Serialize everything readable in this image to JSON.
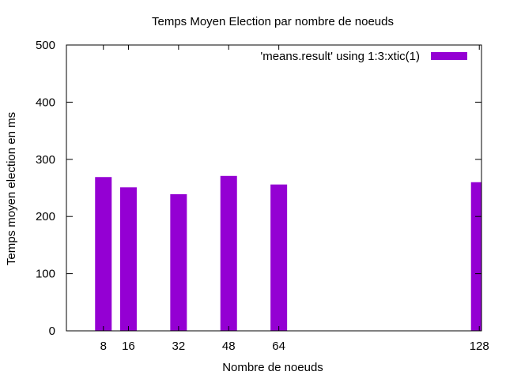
{
  "chart_data": {
    "type": "bar",
    "title": "Temps Moyen Election par nombre de noeuds",
    "xlabel": "Nombre de noeuds",
    "ylabel": "Temps moyen election en ms",
    "x": [
      8,
      16,
      32,
      48,
      64,
      128
    ],
    "tick_labels": [
      "8",
      "16",
      "32",
      "48",
      "64",
      "128"
    ],
    "series": [
      {
        "name": "'means.result' using 1:3:xtic(1)",
        "values": [
          269,
          251,
          239,
          271,
          256,
          260
        ],
        "color": "#9400d3"
      }
    ],
    "xlim": [
      0,
      128
    ],
    "ylim": [
      0,
      500
    ],
    "yticks": [
      0,
      100,
      200,
      300,
      400,
      500
    ],
    "grid": false,
    "legend_position": "top-right"
  }
}
